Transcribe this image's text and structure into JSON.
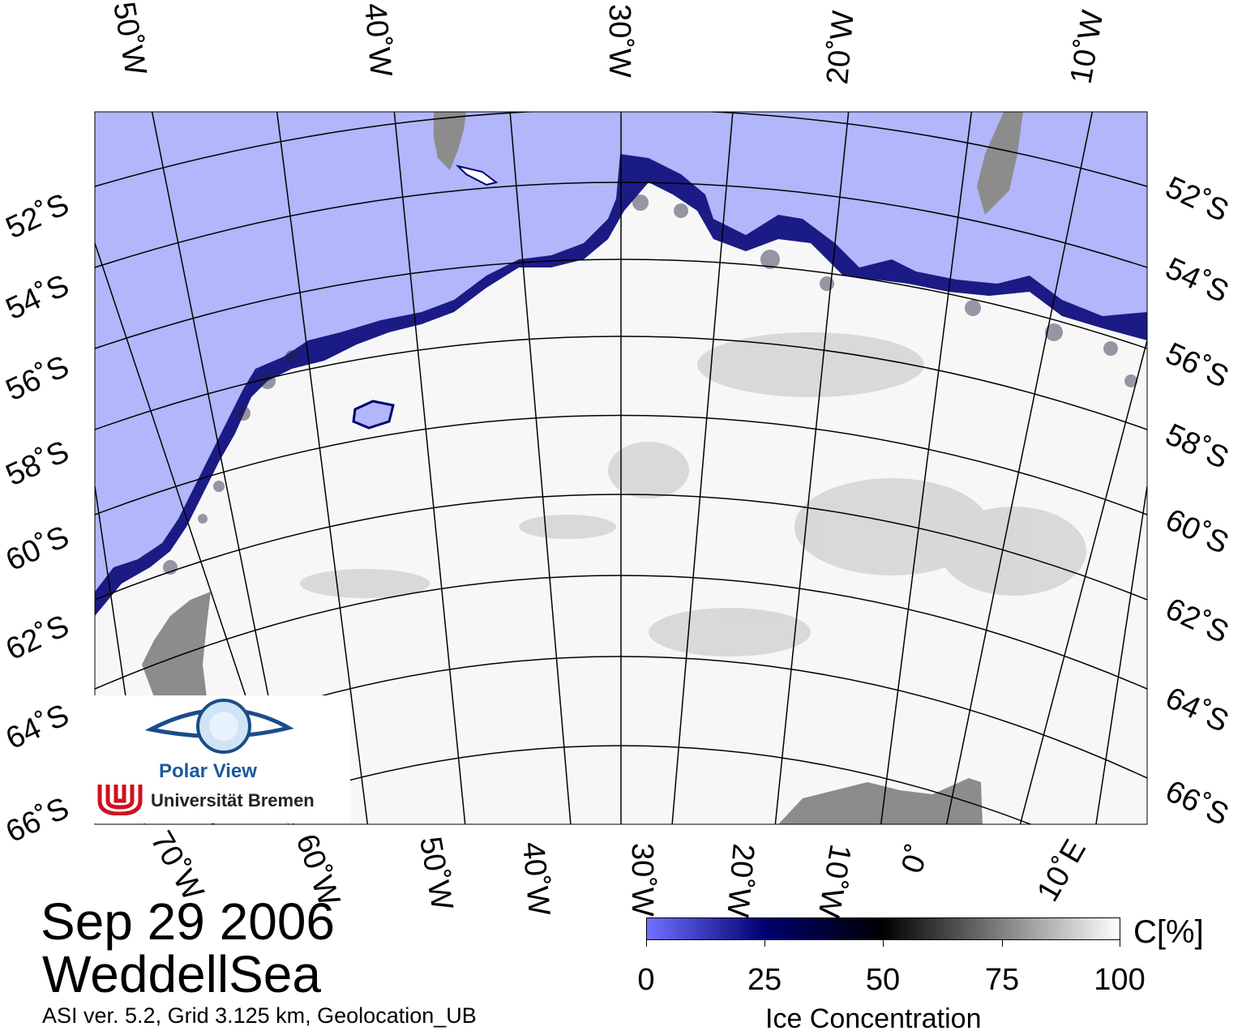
{
  "map": {
    "top_labels": [
      "50˚W",
      "40˚W",
      "30˚W",
      "20˚W",
      "10˚W"
    ],
    "bottom_labels": [
      "70˚W",
      "60˚W",
      "50˚W",
      "40˚W",
      "30˚W",
      "20˚W",
      "10˚W",
      "0˚",
      "10˚E"
    ],
    "left_labels": [
      "52˚S",
      "54˚S",
      "56˚S",
      "58˚S",
      "60˚S",
      "62˚S",
      "64˚S",
      "66˚S"
    ],
    "right_labels": [
      "52˚S",
      "54˚S",
      "56˚S",
      "58˚S",
      "60˚S",
      "62˚S",
      "64˚S",
      "66˚S"
    ],
    "colors": {
      "open_water": "#b2b6fa",
      "land": "#8c8c8c",
      "ice": "#ffffff"
    }
  },
  "caption": {
    "date": "Sep 29 2006",
    "region": "WeddellSea",
    "meta": "ASI ver. 5.2,  Grid 3.125 km, Geolocation_UB"
  },
  "legend": {
    "unit": "C[%]",
    "ticks": [
      "0",
      "25",
      "50",
      "75",
      "100"
    ],
    "title": "Ice Concentration",
    "gradient": [
      "#7070ff",
      "#000070",
      "#000000",
      "#808080",
      "#ffffff"
    ]
  },
  "logo": {
    "title": "Polar View",
    "institution": "Universität Bremen"
  }
}
